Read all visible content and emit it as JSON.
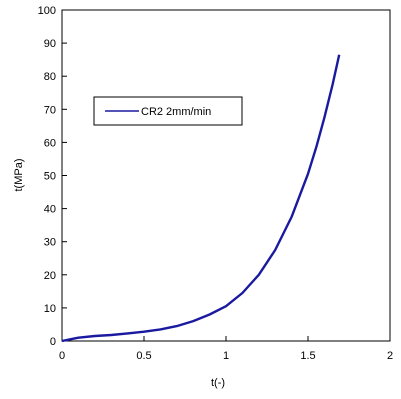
{
  "chart_data": {
    "type": "line",
    "title": "",
    "xlabel": "t(-)",
    "ylabel": "t(MPa)",
    "xlim": [
      0,
      2
    ],
    "ylim": [
      0,
      100
    ],
    "x_ticks": [
      "0",
      "0.5",
      "1",
      "1.5",
      "2"
    ],
    "y_ticks": [
      "0",
      "10",
      "20",
      "30",
      "40",
      "50",
      "60",
      "70",
      "80",
      "90",
      "100"
    ],
    "grid": false,
    "legend_position": "upper-left",
    "series": [
      {
        "name": "CR2 2mm/min",
        "color": "#1a1aa0",
        "x": [
          0.0,
          0.05,
          0.1,
          0.2,
          0.3,
          0.4,
          0.5,
          0.6,
          0.7,
          0.8,
          0.9,
          1.0,
          1.1,
          1.2,
          1.3,
          1.4,
          1.5,
          1.55,
          1.6,
          1.65,
          1.69
        ],
        "y": [
          0.0,
          0.5,
          1.0,
          1.5,
          1.8,
          2.3,
          2.8,
          3.5,
          4.5,
          6.0,
          8.0,
          10.5,
          14.5,
          20.0,
          27.5,
          37.5,
          50.5,
          58.5,
          67.5,
          77.5,
          86.5
        ]
      }
    ]
  }
}
